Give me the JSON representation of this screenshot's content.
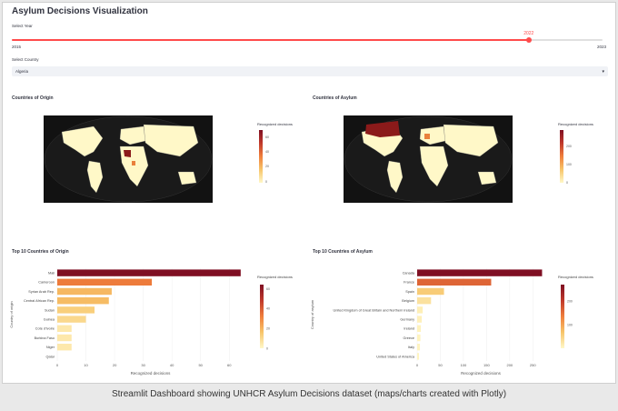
{
  "app": {
    "title": "Asylum Decisions Visualization"
  },
  "year_slider": {
    "label": "Select Year",
    "min": 2015,
    "max": 2023,
    "value": 2022,
    "min_label": "2015",
    "max_label": "2023",
    "value_label": "2022",
    "accent": "#ff4b4b"
  },
  "country_select": {
    "label": "Select Country",
    "value": "Algeria",
    "icon": "chevron-down-icon"
  },
  "maps": {
    "origin": {
      "title": "Countries of Origin",
      "legend_title": "Recognized decisions",
      "ticks": [
        "60",
        "40",
        "20",
        "0"
      ]
    },
    "asylum": {
      "title": "Countries of Asylum",
      "legend_title": "Recognized decisions",
      "ticks": [
        "200",
        "100",
        "0"
      ]
    }
  },
  "chart_data": [
    {
      "type": "bar",
      "orientation": "horizontal",
      "title": "Top 10 Countries of Origin",
      "xlabel": "Recognized decisions",
      "ylabel": "Country of origin",
      "categories": [
        "Mali",
        "Cameroon",
        "Syrian Arab Rep.",
        "Central African Rep.",
        "Sudan",
        "Guinea",
        "Cote d'Ivoire",
        "Burkina Faso",
        "Niger",
        "Qatar"
      ],
      "values": [
        64,
        33,
        19,
        18,
        13,
        10,
        5,
        5,
        5,
        0
      ],
      "xlim": [
        0,
        65
      ],
      "xticks": [
        0,
        10,
        20,
        30,
        40,
        50,
        60
      ],
      "legend_title": "Recognized decisions",
      "legend_ticks": [
        "60",
        "40",
        "20",
        "0"
      ]
    },
    {
      "type": "bar",
      "orientation": "horizontal",
      "title": "Top 10 Countries of Asylum",
      "xlabel": "Recognized decisions",
      "ylabel": "Country of asylum",
      "categories": [
        "Canada",
        "France",
        "Spain",
        "Belgium",
        "United Kingdom of Great Britain and Northern Ireland",
        "Germany",
        "Ireland",
        "Greece",
        "Italy",
        "United States of America"
      ],
      "values": [
        270,
        160,
        58,
        30,
        12,
        10,
        8,
        7,
        6,
        4
      ],
      "xlim": [
        0,
        275
      ],
      "xticks": [
        0,
        50,
        100,
        150,
        200,
        250
      ],
      "legend_title": "Recognized decisions",
      "legend_ticks": [
        "200",
        "100"
      ]
    }
  ],
  "caption": "Streamlit Dashboard showing UNHCR Asylum Decisions dataset (maps/charts created with Plotly)"
}
